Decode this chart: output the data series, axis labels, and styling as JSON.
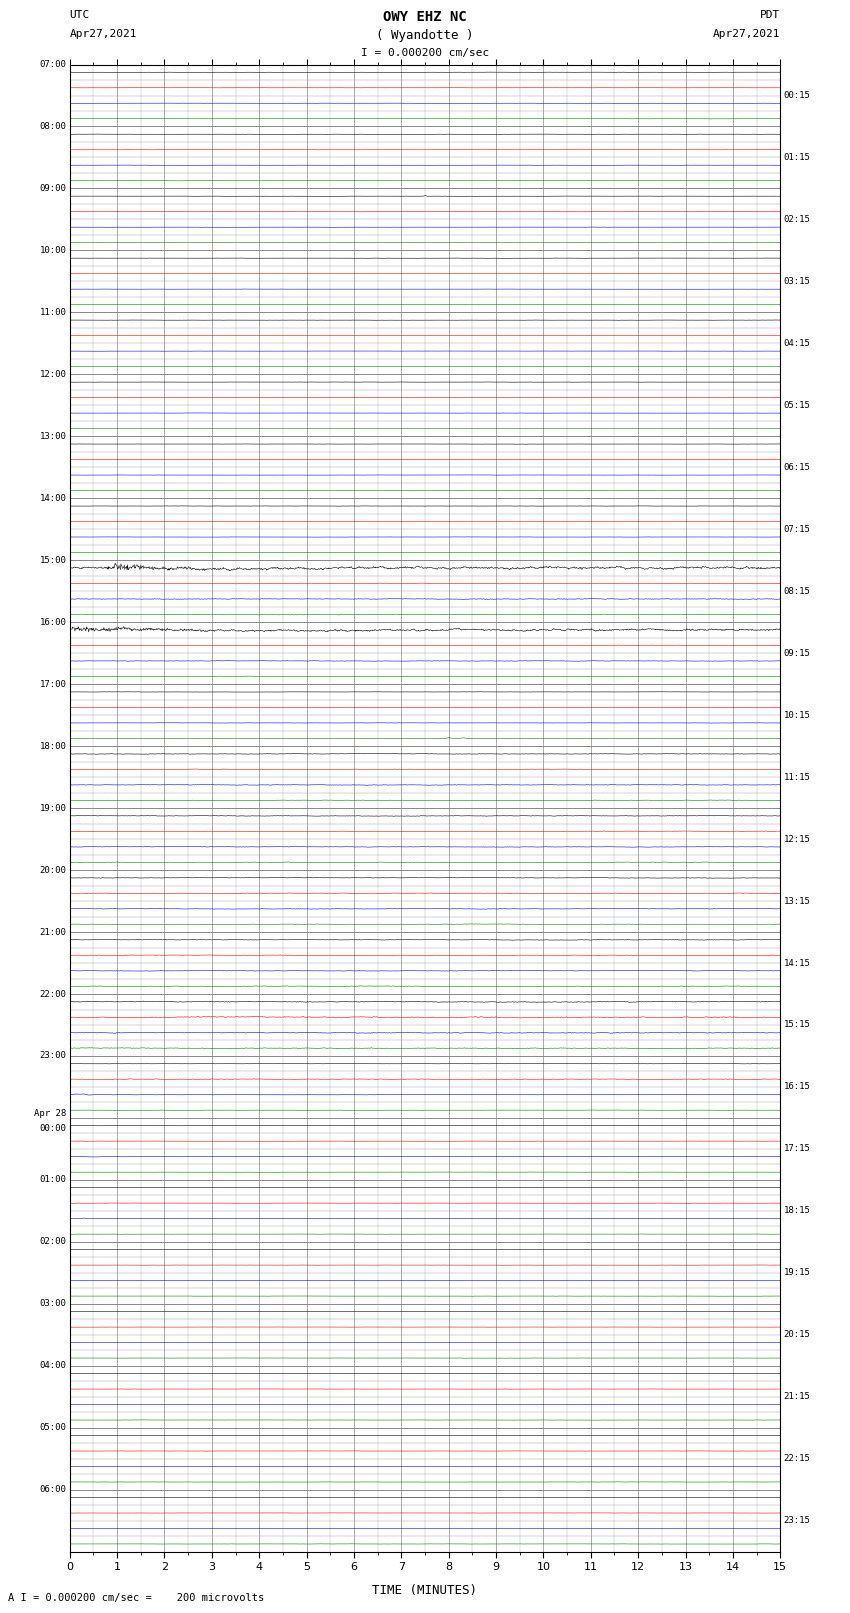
{
  "title_line1": "OWY EHZ NC",
  "title_line2": "( Wyandotte )",
  "title_line3": "I = 0.000200 cm/sec",
  "left_header_label": "UTC",
  "left_header_date": "Apr27,2021",
  "right_header_label": "PDT",
  "right_header_date": "Apr27,2021",
  "xlabel": "TIME (MINUTES)",
  "footer": "A I = 0.000200 cm/sec =    200 microvolts",
  "x_min": 0,
  "x_max": 15,
  "x_ticks": [
    0,
    1,
    2,
    3,
    4,
    5,
    6,
    7,
    8,
    9,
    10,
    11,
    12,
    13,
    14,
    15
  ],
  "left_times": [
    "07:00",
    "08:00",
    "09:00",
    "10:00",
    "11:00",
    "12:00",
    "13:00",
    "14:00",
    "15:00",
    "16:00",
    "17:00",
    "18:00",
    "19:00",
    "20:00",
    "21:00",
    "22:00",
    "23:00",
    "Apr28\n00:00",
    "01:00",
    "02:00",
    "03:00",
    "04:00",
    "05:00",
    "06:00"
  ],
  "right_times": [
    "00:15",
    "01:15",
    "02:15",
    "03:15",
    "04:15",
    "05:15",
    "06:15",
    "07:15",
    "08:15",
    "09:15",
    "10:15",
    "11:15",
    "12:15",
    "13:15",
    "14:15",
    "15:15",
    "16:15",
    "17:15",
    "18:15",
    "19:15",
    "20:15",
    "21:15",
    "22:15",
    "23:15"
  ],
  "n_hours": 24,
  "traces_per_hour": 4,
  "bg_color": "#ffffff",
  "grid_color": "#888888",
  "trace_colors": [
    "black",
    "red",
    "blue",
    "green"
  ],
  "amplitude_scale": 0.12
}
